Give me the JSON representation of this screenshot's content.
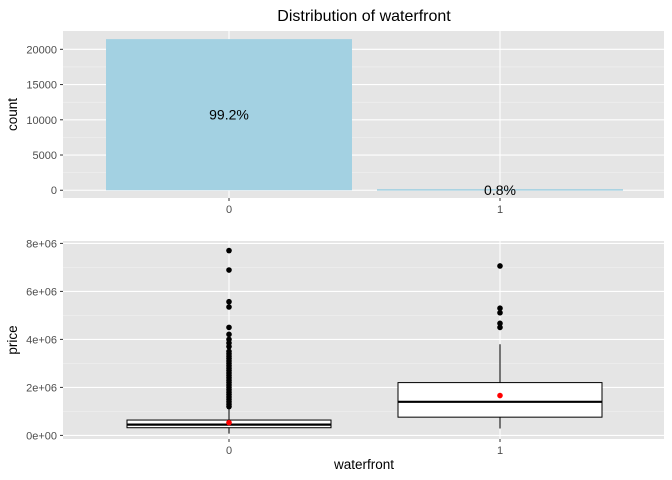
{
  "chart_data": [
    {
      "type": "bar",
      "title": "Distribution of waterfront",
      "xlabel": "",
      "ylabel": "count",
      "categories": [
        "0",
        "1"
      ],
      "values": [
        21450,
        163
      ],
      "data_labels": [
        "99.2%",
        "0.8%"
      ],
      "ylim": [
        -1100,
        22600
      ],
      "yticks": [
        0,
        5000,
        10000,
        15000,
        20000
      ],
      "ytick_labels": [
        "0",
        "5000",
        "10000",
        "15000",
        "20000"
      ],
      "bar_color": "#a3d1e2",
      "grid": true
    },
    {
      "type": "boxplot",
      "xlabel": "waterfront",
      "ylabel": "price",
      "categories": [
        "0",
        "1"
      ],
      "ylim": [
        -150000,
        8100000
      ],
      "yticks": [
        0,
        2000000,
        4000000,
        6000000,
        8000000
      ],
      "ytick_labels": [
        "0e+00",
        "2e+06",
        "4e+06",
        "6e+06",
        "8e+06"
      ],
      "mean_color": "#ff0000",
      "grid": true,
      "boxes": [
        {
          "category": "0",
          "whisker_low": 75000,
          "q1": 320000,
          "median": 450000,
          "q3": 640000,
          "whisker_high": 1130000,
          "mean": 532000,
          "outliers": [
            7700000,
            6890000,
            5570000,
            5350000,
            4500000,
            4210000,
            4000000,
            3850000,
            3700000,
            3500000,
            3400000,
            3300000,
            3200000,
            3100000,
            3000000,
            2900000,
            2800000,
            2700000,
            2600000,
            2500000,
            2400000,
            2300000,
            2200000,
            2100000,
            2000000,
            1900000,
            1800000,
            1700000,
            1600000,
            1500000,
            1400000,
            1300000,
            1200000
          ]
        },
        {
          "category": "1",
          "whisker_low": 290000,
          "q1": 760000,
          "median": 1400000,
          "q3": 2200000,
          "whisker_high": 3800000,
          "mean": 1660000,
          "outliers": [
            7060000,
            5300000,
            5110000,
            4670000,
            4500000
          ]
        }
      ]
    }
  ]
}
